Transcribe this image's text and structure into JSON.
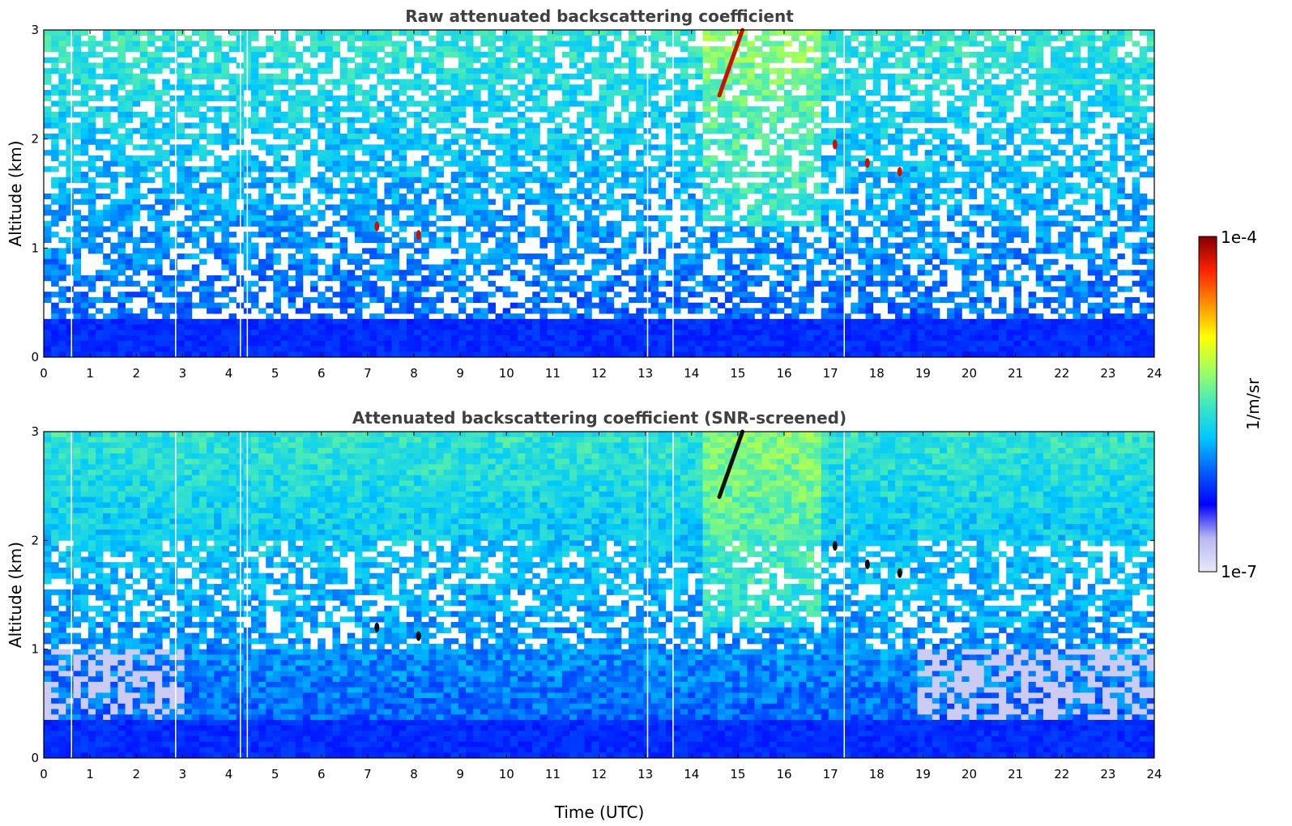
{
  "chart_data": [
    {
      "type": "heatmap",
      "title": "Raw attenuated backscattering coefficient",
      "xlabel": "",
      "ylabel": "Altitude (km)",
      "xlim": [
        0,
        24
      ],
      "ylim": [
        0,
        3
      ],
      "x_ticks": [
        "0",
        "1",
        "2",
        "3",
        "4",
        "5",
        "6",
        "7",
        "8",
        "9",
        "10",
        "11",
        "12",
        "13",
        "14",
        "15",
        "16",
        "17",
        "18",
        "19",
        "20",
        "21",
        "22",
        "23",
        "24"
      ],
      "y_ticks": [
        "0",
        "1",
        "2",
        "3"
      ],
      "data_gaps_utc": [
        0.6,
        2.85,
        4.25,
        4.4,
        13.05,
        13.6,
        17.3
      ],
      "features": [
        {
          "description": "elevated layer",
          "time_start": 14.6,
          "time_end": 15.1,
          "alt_start": 2.4,
          "alt_end": 3.0,
          "intensity": "high"
        },
        {
          "description": "spot",
          "time": 7.2,
          "alt": 1.2,
          "intensity": "high"
        },
        {
          "description": "spot",
          "time": 8.1,
          "alt": 1.12,
          "intensity": "high"
        },
        {
          "description": "spot",
          "time": 17.1,
          "alt": 1.95,
          "intensity": "high"
        },
        {
          "description": "spot",
          "time": 17.8,
          "alt": 1.78,
          "intensity": "high"
        },
        {
          "description": "spot",
          "time": 18.5,
          "alt": 1.7,
          "intensity": "high"
        }
      ]
    },
    {
      "type": "heatmap",
      "title": "Attenuated backscattering coefficient (SNR-screened)",
      "xlabel": "Time (UTC)",
      "ylabel": "Altitude (km)",
      "xlim": [
        0,
        24
      ],
      "ylim": [
        0,
        3
      ],
      "x_ticks": [
        "0",
        "1",
        "2",
        "3",
        "4",
        "5",
        "6",
        "7",
        "8",
        "9",
        "10",
        "11",
        "12",
        "13",
        "14",
        "15",
        "16",
        "17",
        "18",
        "19",
        "20",
        "21",
        "22",
        "23",
        "24"
      ],
      "y_ticks": [
        "0",
        "1",
        "2",
        "3"
      ],
      "data_gaps_utc": [
        0.6,
        2.85,
        4.25,
        4.4,
        13.05,
        13.6,
        17.3
      ]
    }
  ],
  "colorbar": {
    "label": "1/m/sr",
    "max_label": "1e-4",
    "min_label": "1e-7",
    "scale": "log",
    "range": [
      1e-07,
      0.0001
    ],
    "colors": [
      "#e8e8f8",
      "#b8b8f0",
      "#0000ff",
      "#0060ff",
      "#00c8ff",
      "#40e8c0",
      "#a0ff60",
      "#ffff00",
      "#ff9000",
      "#ff2000",
      "#800000"
    ]
  }
}
